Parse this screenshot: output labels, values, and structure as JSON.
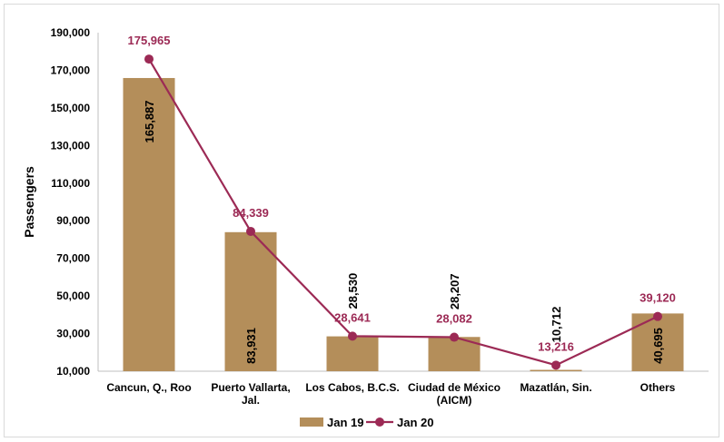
{
  "chart_data": {
    "type": "bar",
    "categories": [
      [
        "Cancun, Q., Roo"
      ],
      [
        "Puerto Vallarta,",
        "Jal."
      ],
      [
        "Los Cabos, B.C.S."
      ],
      [
        "Ciudad de México",
        "(AICM)"
      ],
      [
        "Mazatlán, Sin."
      ],
      [
        "Others"
      ]
    ],
    "ylabel": "Passengers",
    "ylim": [
      10000,
      190000
    ],
    "yticks": [
      10000,
      30000,
      50000,
      70000,
      90000,
      110000,
      130000,
      150000,
      170000,
      190000
    ],
    "ytick_labels": [
      "10,000",
      "30,000",
      "50,000",
      "70,000",
      "90,000",
      "110,000",
      "130,000",
      "150,000",
      "170,000",
      "190,000"
    ],
    "grid": false,
    "legend_position": "bottom",
    "series": [
      {
        "name": "Jan 19",
        "kind": "bar",
        "color": "#b48e5a",
        "values": [
          165887,
          83931,
          28530,
          28207,
          10712,
          40695
        ],
        "labels": [
          "165,887",
          "83,931",
          "28,530",
          "28,207",
          "10,712",
          "40,695"
        ]
      },
      {
        "name": "Jan 20",
        "kind": "line",
        "color": "#9c2a55",
        "values": [
          175965,
          84339,
          28641,
          28082,
          13216,
          39120
        ],
        "labels": [
          "175,965",
          "84,339",
          "28,641",
          "28,082",
          "13,216",
          "39,120"
        ]
      }
    ]
  }
}
